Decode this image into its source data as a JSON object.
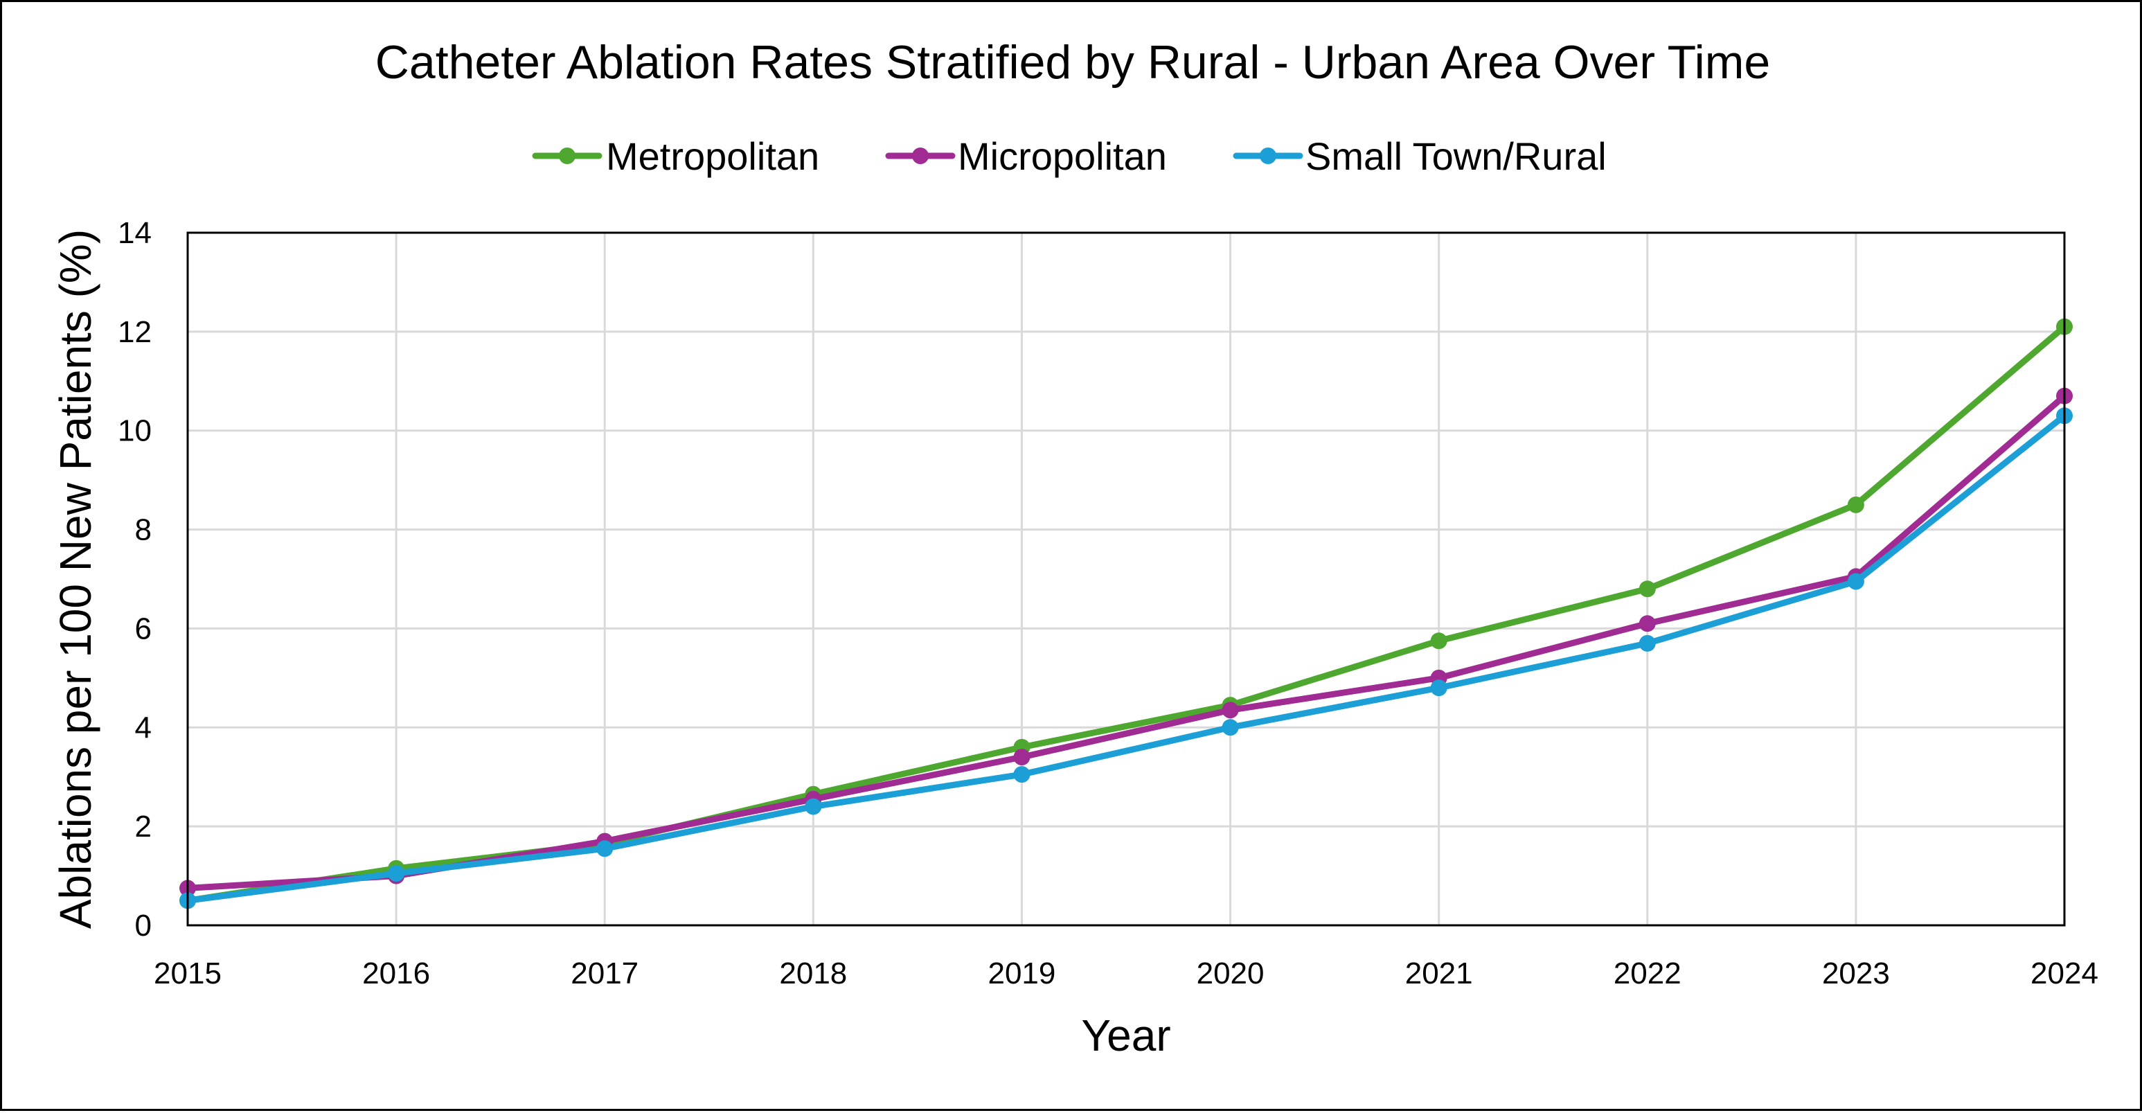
{
  "chart_data": {
    "type": "line",
    "title": "Catheter Ablation Rates Stratified by Rural - Urban Area Over Time",
    "xlabel": "Year",
    "ylabel": "Ablations per 100 New Patients (%)",
    "x": [
      "2015",
      "2016",
      "2017",
      "2018",
      "2019",
      "2020",
      "2021",
      "2022",
      "2023",
      "2024"
    ],
    "ylim": [
      0,
      14
    ],
    "yticks": [
      "0",
      "2",
      "4",
      "6",
      "8",
      "10",
      "12",
      "14"
    ],
    "grid": true,
    "legend_position": "top",
    "series": [
      {
        "name": "Metropolitan",
        "color": "#4ea72e",
        "values": [
          0.5,
          1.15,
          1.65,
          2.65,
          3.6,
          4.45,
          5.75,
          6.8,
          8.5,
          12.1
        ]
      },
      {
        "name": "Micropolitan",
        "color": "#a02b93",
        "values": [
          0.75,
          1.0,
          1.7,
          2.55,
          3.4,
          4.35,
          5.0,
          6.1,
          7.05,
          10.7
        ]
      },
      {
        "name": "Small Town/Rural",
        "color": "#1b9fd6",
        "values": [
          0.5,
          1.05,
          1.55,
          2.4,
          3.05,
          4.0,
          4.8,
          5.7,
          6.95,
          10.3
        ]
      }
    ]
  }
}
